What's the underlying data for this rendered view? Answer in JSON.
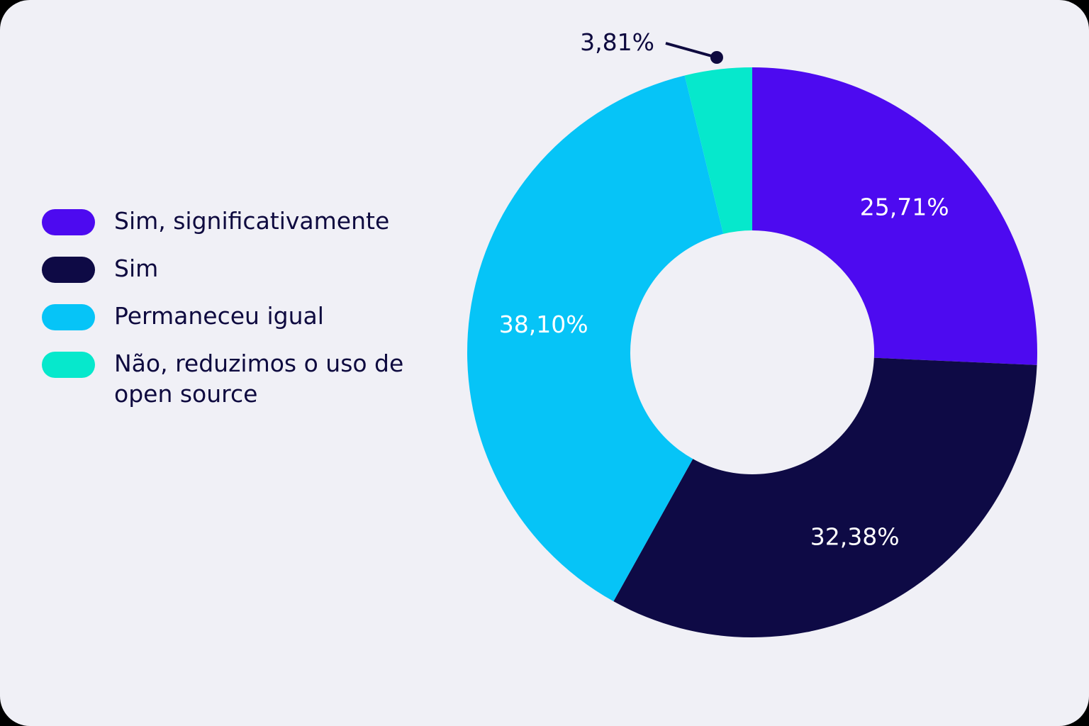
{
  "chart_data": {
    "type": "pie",
    "donut": true,
    "categories": [
      "Sim, significativamente",
      "Sim",
      "Permaneceu igual",
      "Não, reduzimos o uso de open source"
    ],
    "values": [
      25.71,
      32.38,
      38.1,
      3.81
    ],
    "value_labels": [
      "25,71%",
      "32,38%",
      "38,10%",
      "3,81%"
    ],
    "colors": [
      "#4d0af0",
      "#0e0a45",
      "#06c4f7",
      "#06e8cc"
    ],
    "legend_position": "left",
    "title": "",
    "start_angle": "12 o'clock",
    "direction": "clockwise"
  },
  "legend": {
    "items": [
      {
        "label": "Sim, significativamente",
        "color": "#4d0af0"
      },
      {
        "label": "Sim",
        "color": "#0e0a45"
      },
      {
        "label": "Permaneceu igual",
        "color": "#06c4f7"
      },
      {
        "label": "Não, reduzimos o uso de open source",
        "color": "#06e8cc"
      }
    ]
  }
}
